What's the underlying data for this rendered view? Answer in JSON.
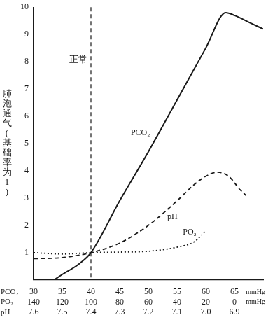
{
  "chart_data": {
    "type": "line",
    "y_label": "肺泡通气(基础率为1)",
    "xlim": [
      30,
      70
    ],
    "xticks": [
      30,
      35,
      40,
      45,
      50,
      55,
      60,
      65
    ],
    "x_axis_rows": [
      {
        "name": "PCO₂",
        "unit": "mmHg",
        "ticks": [
          30,
          35,
          40,
          45,
          50,
          55,
          60,
          65
        ]
      },
      {
        "name": "PO₂",
        "unit": "mmHg",
        "ticks": [
          140,
          120,
          100,
          80,
          60,
          40,
          20,
          0
        ]
      },
      {
        "name": "pH",
        "ticks": [
          7.6,
          7.5,
          7.4,
          7.3,
          7.2,
          7.1,
          {
            "value": 7,
            "label": "7.0"
          },
          6.9
        ]
      }
    ],
    "ylim": [
      0,
      10
    ],
    "yticks": [
      1,
      2,
      3,
      4,
      5,
      6,
      7,
      8,
      9,
      10
    ],
    "grid": false,
    "annotations": [
      {
        "text": "正常",
        "x": 40,
        "line_style": "dashed"
      }
    ],
    "series": [
      {
        "name": "PCO₂",
        "color": "#1a1a1a",
        "line_style": "solid",
        "marker": "none",
        "x": [
          33.6,
          35,
          37,
          38,
          40,
          45,
          50,
          55,
          60,
          63.5,
          65,
          68,
          70
        ],
        "values": [
          0,
          0.2,
          0.45,
          0.6,
          1.0,
          2.9,
          4.7,
          6.6,
          8.5,
          9.8,
          9.7,
          9.4,
          9.2
        ]
      },
      {
        "name": "pH",
        "color": "#1a1a1a",
        "line_style": "dashed",
        "marker": "none",
        "x": [
          30,
          35,
          40,
          45,
          50,
          55,
          58,
          60,
          62,
          64,
          66,
          67
        ],
        "values": [
          0.78,
          0.82,
          1.0,
          1.35,
          2.0,
          2.9,
          3.5,
          3.8,
          3.95,
          3.8,
          3.3,
          3.1
        ]
      },
      {
        "name": "PO₂",
        "color": "#1a1a1a",
        "line_style": "dotted",
        "marker": "none",
        "x": [
          30,
          35,
          40,
          45,
          50,
          55,
          58,
          60
        ],
        "values": [
          1.0,
          0.95,
          1.0,
          1.02,
          1.05,
          1.2,
          1.4,
          1.8
        ]
      }
    ]
  }
}
